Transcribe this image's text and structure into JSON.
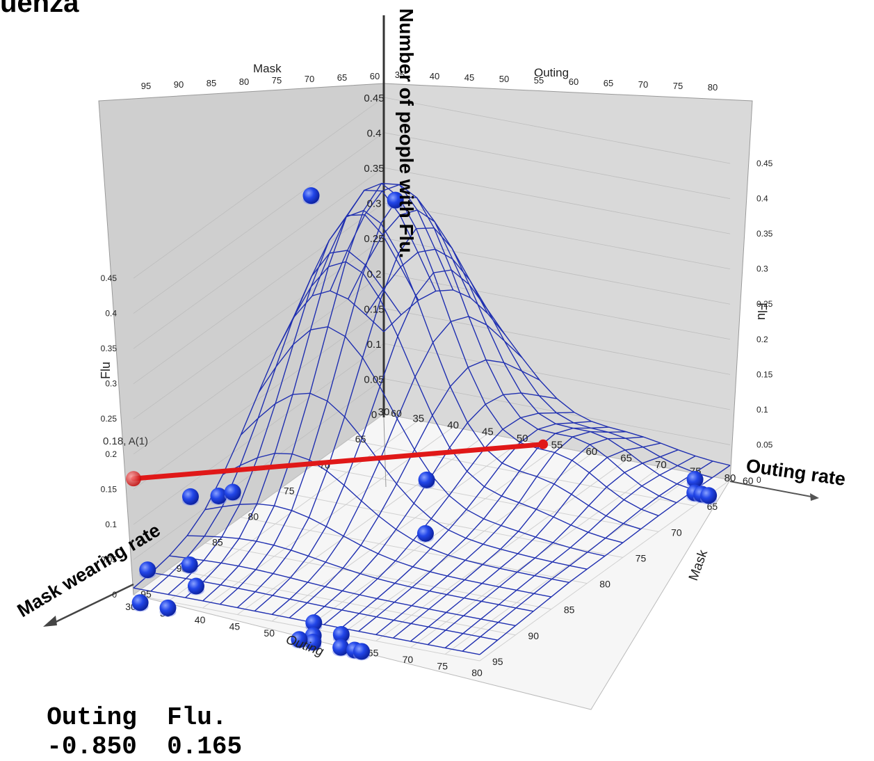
{
  "title_fragment": "uenza",
  "readout": {
    "headers": [
      "Outing",
      "Flu."
    ],
    "values": [
      "-0.850",
      "0.165"
    ]
  },
  "colors": {
    "mesh": "#1f2fb0",
    "points": "#1a3ee6",
    "highlight": "#e01818",
    "wall": "#cfcfcf",
    "axis": "#444444"
  },
  "chart_data": {
    "type": "scatter",
    "subtype": "3d-surface-with-points",
    "title": "",
    "axes": {
      "x": {
        "label": "Outing",
        "range": [
          30,
          80
        ],
        "ticks": [
          "30",
          "35",
          "40",
          "45",
          "50",
          "55",
          "60",
          "65",
          "70",
          "75",
          "80"
        ]
      },
      "y": {
        "label": "Mask",
        "range": [
          60,
          95
        ],
        "ticks": [
          "60",
          "65",
          "70",
          "75",
          "80",
          "85",
          "90",
          "95"
        ],
        "top_ticks": [
          "95",
          "90",
          "85",
          "80",
          "75",
          "70",
          "65",
          "60"
        ]
      },
      "z": {
        "label": "Flu",
        "range": [
          0,
          0.45
        ],
        "ticks": [
          "0",
          "0.05",
          "0.1",
          "0.15",
          "0.2",
          "0.25",
          "0.3",
          "0.35",
          "0.4",
          "0.45"
        ],
        "center_ticks": [
          "0",
          "0.05",
          "0.1",
          "0.15",
          "0.2",
          "0.25",
          "0.3",
          "0.35",
          "0.4",
          "0.45"
        ]
      }
    },
    "annotations": {
      "vertical_axis": "Number of people with Flu.",
      "outing_axis": "Outing rate",
      "mask_axis": "Mask wearing rate",
      "highlight_label": "0.18, A(1)"
    },
    "peak": {
      "x": 40,
      "y": 70,
      "z": 0.42
    },
    "points": [
      {
        "x": 35,
        "y": 75,
        "z": 0.43
      },
      {
        "x": 42,
        "y": 70,
        "z": 0.4
      },
      {
        "x": 62,
        "y": 85,
        "z": 0.15
      },
      {
        "x": 67,
        "y": 90,
        "z": 0.12
      },
      {
        "x": 31,
        "y": 88,
        "z": 0.09
      },
      {
        "x": 33,
        "y": 86,
        "z": 0.08
      },
      {
        "x": 34,
        "y": 85,
        "z": 0.08
      },
      {
        "x": 35,
        "y": 92,
        "z": 0.03
      },
      {
        "x": 38,
        "y": 94,
        "z": 0.02
      },
      {
        "x": 31,
        "y": 94,
        "z": 0.03
      },
      {
        "x": 32,
        "y": 96,
        "z": 0.0
      },
      {
        "x": 36,
        "y": 96,
        "z": 0.0
      },
      {
        "x": 55,
        "y": 94,
        "z": 0.0
      },
      {
        "x": 57,
        "y": 96,
        "z": 0.0
      },
      {
        "x": 58,
        "y": 97,
        "z": 0.0
      },
      {
        "x": 56,
        "y": 97,
        "z": 0.0
      },
      {
        "x": 60,
        "y": 95,
        "z": 0.0
      },
      {
        "x": 62,
        "y": 97,
        "z": 0.0
      },
      {
        "x": 64,
        "y": 97,
        "z": 0.0
      },
      {
        "x": 65,
        "y": 97,
        "z": 0.0
      },
      {
        "x": 77,
        "y": 62,
        "z": 0.01
      },
      {
        "x": 78,
        "y": 63,
        "z": 0.0
      },
      {
        "x": 79,
        "y": 63,
        "z": 0.0
      },
      {
        "x": 80,
        "y": 63,
        "z": 0.0
      }
    ],
    "highlight_segment": {
      "from": {
        "x": 30,
        "y": 95,
        "z": 0.165
      },
      "to": {
        "x": 53,
        "y": 60,
        "z": 0.0
      }
    }
  }
}
